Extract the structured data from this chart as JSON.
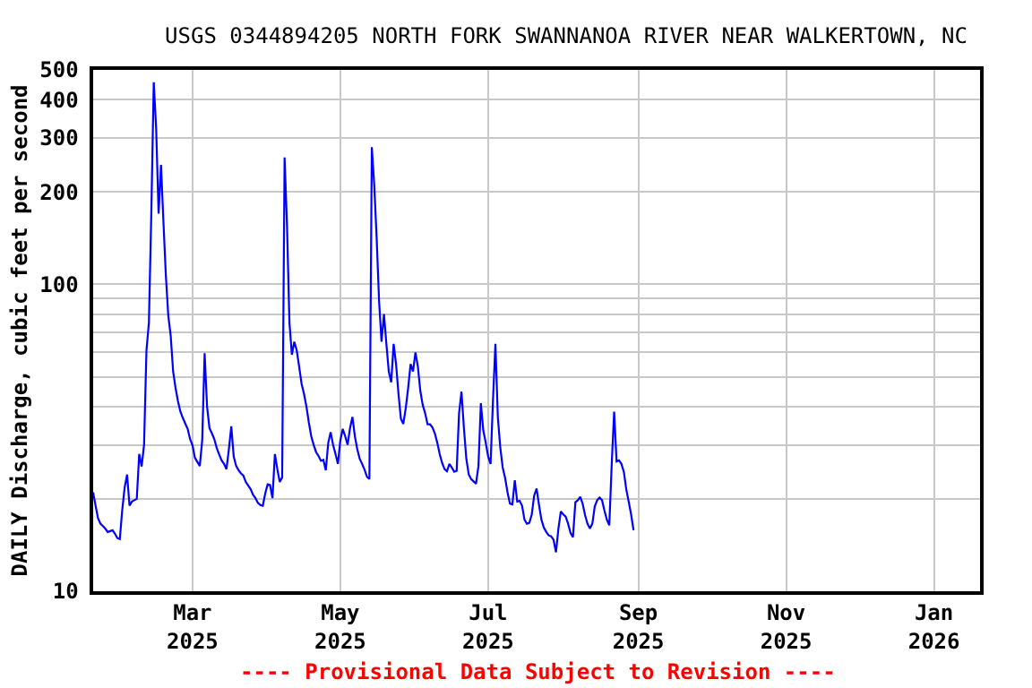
{
  "chart_data": {
    "type": "line",
    "title": "USGS 0344894205 NORTH FORK SWANNANOA RIVER NEAR WALKERTOWN, NC",
    "ylabel": "DAILY Discharge, cubic feet per second",
    "annotations": [
      "---- Provisional Data Subject to Revision ----"
    ],
    "color": "#0000ff",
    "log": true,
    "grid": true,
    "xlim": [
      "2025-01-19",
      "2026-01-20"
    ],
    "ylim": [
      10,
      500
    ],
    "xticks": [
      {
        "value": "2025-03-01",
        "label": "Mar\n2025"
      },
      {
        "value": "2025-05-01",
        "label": "May\n2025"
      },
      {
        "value": "2025-07-01",
        "label": "Jul\n2025"
      },
      {
        "value": "2025-09-01",
        "label": "Sep\n2025"
      },
      {
        "value": "2025-11-01",
        "label": "Nov\n2025"
      },
      {
        "value": "2026-01-01",
        "label": "Jan\n2026"
      }
    ],
    "yticks": [
      10,
      {
        "value": 20,
        "label": null
      },
      {
        "value": 30,
        "label": null
      },
      {
        "value": 40,
        "label": null
      },
      {
        "value": 50,
        "label": null
      },
      {
        "value": 60,
        "label": null
      },
      {
        "value": 70,
        "label": null
      },
      {
        "value": 80,
        "label": null
      },
      {
        "value": 90,
        "label": null
      },
      100,
      200,
      300,
      400,
      500
    ],
    "x": [
      "2025-01-19",
      "2025-01-20",
      "2025-01-21",
      "2025-01-22",
      "2025-01-23",
      "2025-01-24",
      "2025-01-25",
      "2025-01-26",
      "2025-01-27",
      "2025-01-28",
      "2025-01-29",
      "2025-01-30",
      "2025-01-31",
      "2025-02-01",
      "2025-02-02",
      "2025-02-03",
      "2025-02-04",
      "2025-02-05",
      "2025-02-06",
      "2025-02-07",
      "2025-02-08",
      "2025-02-09",
      "2025-02-10",
      "2025-02-11",
      "2025-02-12",
      "2025-02-13",
      "2025-02-14",
      "2025-02-15",
      "2025-02-16",
      "2025-02-17",
      "2025-02-18",
      "2025-02-19",
      "2025-02-20",
      "2025-02-21",
      "2025-02-22",
      "2025-02-23",
      "2025-02-24",
      "2025-02-25",
      "2025-02-26",
      "2025-02-27",
      "2025-02-28",
      "2025-03-01",
      "2025-03-02",
      "2025-03-03",
      "2025-03-04",
      "2025-03-05",
      "2025-03-06",
      "2025-03-07",
      "2025-03-08",
      "2025-03-09",
      "2025-03-10",
      "2025-03-11",
      "2025-03-12",
      "2025-03-13",
      "2025-03-14",
      "2025-03-15",
      "2025-03-16",
      "2025-03-17",
      "2025-03-18",
      "2025-03-19",
      "2025-03-20",
      "2025-03-21",
      "2025-03-22",
      "2025-03-23",
      "2025-03-24",
      "2025-03-25",
      "2025-03-26",
      "2025-03-27",
      "2025-03-28",
      "2025-03-29",
      "2025-03-30",
      "2025-03-31",
      "2025-04-01",
      "2025-04-02",
      "2025-04-03",
      "2025-04-04",
      "2025-04-05",
      "2025-04-06",
      "2025-04-07",
      "2025-04-08",
      "2025-04-09",
      "2025-04-10",
      "2025-04-11",
      "2025-04-12",
      "2025-04-13",
      "2025-04-14",
      "2025-04-15",
      "2025-04-16",
      "2025-04-17",
      "2025-04-18",
      "2025-04-19",
      "2025-04-20",
      "2025-04-21",
      "2025-04-22",
      "2025-04-23",
      "2025-04-24",
      "2025-04-25",
      "2025-04-26",
      "2025-04-27",
      "2025-04-28",
      "2025-04-29",
      "2025-04-30",
      "2025-05-01",
      "2025-05-02",
      "2025-05-03",
      "2025-05-04",
      "2025-05-05",
      "2025-05-06",
      "2025-05-07",
      "2025-05-08",
      "2025-05-09",
      "2025-05-10",
      "2025-05-11",
      "2025-05-12",
      "2025-05-13",
      "2025-05-14",
      "2025-05-15",
      "2025-05-16",
      "2025-05-17",
      "2025-05-18",
      "2025-05-19",
      "2025-05-20",
      "2025-05-21",
      "2025-05-22",
      "2025-05-23",
      "2025-05-24",
      "2025-05-25",
      "2025-05-26",
      "2025-05-27",
      "2025-05-28",
      "2025-05-29",
      "2025-05-30",
      "2025-05-31",
      "2025-06-01",
      "2025-06-02",
      "2025-06-03",
      "2025-06-04",
      "2025-06-05",
      "2025-06-06",
      "2025-06-07",
      "2025-06-08",
      "2025-06-09",
      "2025-06-10",
      "2025-06-11",
      "2025-06-12",
      "2025-06-13",
      "2025-06-14",
      "2025-06-15",
      "2025-06-16",
      "2025-06-17",
      "2025-06-18",
      "2025-06-19",
      "2025-06-20",
      "2025-06-21",
      "2025-06-22",
      "2025-06-23",
      "2025-06-24",
      "2025-06-25",
      "2025-06-26",
      "2025-06-27",
      "2025-06-28",
      "2025-06-29",
      "2025-06-30",
      "2025-07-01",
      "2025-07-02",
      "2025-07-03",
      "2025-07-04",
      "2025-07-05",
      "2025-07-06",
      "2025-07-07",
      "2025-07-08",
      "2025-07-09",
      "2025-07-10",
      "2025-07-11",
      "2025-07-12",
      "2025-07-13",
      "2025-07-14",
      "2025-07-15",
      "2025-07-16",
      "2025-07-17",
      "2025-07-18",
      "2025-07-19",
      "2025-07-20",
      "2025-07-21",
      "2025-07-22",
      "2025-07-23",
      "2025-07-24",
      "2025-07-25",
      "2025-07-26",
      "2025-07-27",
      "2025-07-28",
      "2025-07-29",
      "2025-07-30",
      "2025-07-31",
      "2025-08-01",
      "2025-08-02",
      "2025-08-03",
      "2025-08-04",
      "2025-08-05",
      "2025-08-06",
      "2025-08-07",
      "2025-08-08",
      "2025-08-09",
      "2025-08-10",
      "2025-08-11",
      "2025-08-12",
      "2025-08-13",
      "2025-08-14",
      "2025-08-15",
      "2025-08-16",
      "2025-08-17",
      "2025-08-18",
      "2025-08-19",
      "2025-08-20",
      "2025-08-21",
      "2025-08-22",
      "2025-08-23",
      "2025-08-24",
      "2025-08-25",
      "2025-08-26",
      "2025-08-27",
      "2025-08-28",
      "2025-08-29",
      "2025-08-30"
    ],
    "values": [
      21,
      19,
      17.3,
      16.6,
      16.3,
      16.0,
      15.6,
      15.7,
      15.8,
      15.4,
      14.9,
      14.8,
      18.4,
      21.8,
      24,
      19,
      19.6,
      19.8,
      20,
      28,
      25.5,
      30,
      61,
      75,
      171,
      456,
      322,
      170,
      245,
      160,
      107,
      79,
      68,
      52,
      46,
      41.6,
      38.5,
      36.7,
      35.2,
      33.8,
      31.3,
      29.9,
      27.2,
      26.4,
      25.6,
      31,
      59.7,
      40,
      34,
      32.7,
      31.3,
      29.3,
      27.9,
      26.7,
      26,
      25,
      29,
      34.5,
      27.5,
      25.6,
      24.8,
      24.2,
      23.8,
      22.7,
      22.1,
      21.5,
      20.6,
      20.1,
      19.4,
      19.1,
      19.0,
      20.8,
      22.3,
      22.2,
      20.1,
      28,
      25,
      22.7,
      23.5,
      259,
      155,
      75,
      59,
      65,
      61,
      54,
      47.5,
      44,
      40,
      35.5,
      32,
      30,
      28.4,
      27.6,
      26.6,
      26.8,
      24.8,
      30.4,
      33,
      30,
      28,
      26,
      31,
      33.8,
      32,
      30,
      34,
      37,
      32,
      29,
      27,
      26,
      24.9,
      23.6,
      23.2,
      280,
      210,
      141,
      88,
      65,
      80,
      64,
      52,
      48,
      64,
      55,
      44,
      36.5,
      35.1,
      39.5,
      46,
      55,
      52,
      60,
      54,
      45,
      40.5,
      38,
      35,
      35,
      34.2,
      32.7,
      30.5,
      28,
      26.2,
      25,
      24.6,
      26,
      25.3,
      24.5,
      24.7,
      38,
      44.7,
      34,
      27,
      24,
      23.2,
      22.8,
      22.4,
      25.6,
      41,
      33.4,
      30.5,
      27.5,
      26,
      42,
      64,
      37,
      29.5,
      25.3,
      23.4,
      21,
      19.3,
      19.2,
      23,
      19.6,
      19.7,
      19.0,
      17.1,
      16.6,
      16.7,
      17.8,
      20.5,
      21.6,
      19.1,
      17.1,
      16.1,
      15.6,
      15.2,
      15.1,
      14.7,
      13.4,
      16,
      18.2,
      17.8,
      17.5,
      16.6,
      15.5,
      15.0,
      19.5,
      19.8,
      20.3,
      19.3,
      17.7,
      16.6,
      16.0,
      16.6,
      18.9,
      19.8,
      20.2,
      19.8,
      18.3,
      17.1,
      16.4,
      26,
      38.5,
      26.5,
      26.7,
      26,
      24.5,
      21.5,
      19.6,
      17.8,
      15.8
    ]
  }
}
